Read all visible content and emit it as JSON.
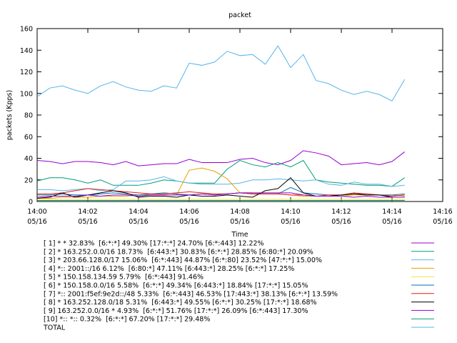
{
  "chart_data": {
    "type": "line",
    "title": "packet",
    "xlabel": "Time",
    "ylabel": "packets (Kpps)",
    "x": [
      0,
      0.5,
      1,
      1.5,
      2,
      2.5,
      3,
      3.5,
      4,
      4.5,
      5,
      5.5,
      6,
      6.5,
      7,
      7.5,
      8,
      8.5,
      9,
      9.5,
      10,
      10.5,
      11,
      11.5,
      12,
      12.5,
      13,
      13.5,
      14,
      14.5
    ],
    "xlim": [
      0,
      16
    ],
    "xticks": [
      {
        "value": 0,
        "label": "14:00\n05/16"
      },
      {
        "value": 2,
        "label": "14:02\n05/16"
      },
      {
        "value": 4,
        "label": "14:04\n05/16"
      },
      {
        "value": 6,
        "label": "14:06\n05/16"
      },
      {
        "value": 8,
        "label": "14:08\n05/16"
      },
      {
        "value": 10,
        "label": "14:10\n05/16"
      },
      {
        "value": 12,
        "label": "14:12\n05/16"
      },
      {
        "value": 14,
        "label": "14:14\n05/16"
      },
      {
        "value": 16,
        "label": "14:16\n05/16"
      }
    ],
    "ylim": [
      0,
      160
    ],
    "yticks": [
      0,
      20,
      40,
      60,
      80,
      100,
      120,
      140,
      160
    ],
    "grid": false,
    "series": [
      {
        "name": "[ 1] * * 32.83%  [6:*:*] 49.30% [17:*:*] 24.70% [6:*:443] 12.22%",
        "color": "#9400d3",
        "values": [
          38,
          37,
          35,
          37,
          37,
          36,
          34,
          37,
          33,
          34,
          35,
          35,
          39,
          36,
          36,
          36,
          39,
          40,
          36,
          34,
          38,
          47,
          45,
          42,
          34,
          35,
          36,
          34,
          37,
          46
        ]
      },
      {
        "name": "[ 2] * 163.252.0.0/16 18.73%  [6:443:*] 30.83% [6:*:*] 28.85% [6:80:*] 20.09%",
        "color": "#009e73",
        "values": [
          19,
          22,
          22,
          20,
          17,
          20,
          15,
          15,
          15,
          17,
          20,
          19,
          17,
          17,
          17,
          30,
          38,
          34,
          32,
          36,
          32,
          38,
          20,
          18,
          17,
          16,
          15,
          15,
          14,
          22
        ]
      },
      {
        "name": "[ 3] * 203.66.128.0/17 15.06%  [6:*:443] 44.87% [6:*:80] 23.52% [47:*:*] 15.00%",
        "color": "#56b4e9",
        "values": [
          11,
          11,
          10,
          11,
          12,
          10,
          11,
          19,
          19,
          20,
          23,
          19,
          17,
          16,
          16,
          16,
          17,
          20,
          20,
          21,
          20,
          19,
          20,
          16,
          15,
          18,
          16,
          16,
          14,
          15
        ]
      },
      {
        "name": "[ 4] *:: 2001::/16 6.12%  [6:80:*] 47.11% [6:443:*] 28.25% [6:*:*] 17.25%",
        "color": "#e69f00",
        "values": [
          3,
          3,
          4,
          4,
          4,
          5,
          5,
          5,
          6,
          6,
          6,
          6,
          29,
          31,
          28,
          21,
          8,
          8,
          7,
          7,
          6,
          5,
          5,
          5,
          5,
          6,
          6,
          6,
          6,
          5
        ]
      },
      {
        "name": "[ 5] * 150.158.134.59 5.79%  [6:*:443] 91.46%",
        "color": "#f0e442",
        "values": [
          2,
          2,
          2,
          2,
          2,
          2,
          2,
          2,
          2,
          2,
          2,
          2,
          2,
          2,
          2,
          2,
          2,
          2,
          2,
          2,
          2,
          2,
          2,
          2,
          2,
          2,
          2,
          2,
          2,
          2
        ]
      },
      {
        "name": "[ 6] * 150.158.0.0/16 5.58%  [6:*:*] 49.34% [6:443:*] 18.84% [17:*:*] 15.05%",
        "color": "#0072b2",
        "values": [
          6,
          6,
          7,
          6,
          6,
          7,
          8,
          7,
          6,
          7,
          8,
          7,
          6,
          7,
          6,
          7,
          8,
          7,
          7,
          7,
          13,
          8,
          7,
          6,
          6,
          7,
          7,
          6,
          6,
          7
        ]
      },
      {
        "name": "[ 7] *:: 2001:f5ef:9e2d::/48 5.33%  [6:*:443] 46.53% [17:443:*] 38.13% [6:*:*] 13.59%",
        "color": "#e51e10",
        "values": [
          7,
          7,
          8,
          10,
          12,
          11,
          10,
          9,
          8,
          7,
          7,
          8,
          9,
          8,
          7,
          7,
          8,
          7,
          7,
          7,
          6,
          6,
          5,
          6,
          6,
          8,
          7,
          6,
          5,
          6
        ]
      },
      {
        "name": "[ 8] * 163.252.128.0/18 5.31%  [6:443:*] 49.55% [6:*:*] 30.25% [17:*:*] 18.68%",
        "color": "#000000",
        "values": [
          3,
          4,
          8,
          4,
          6,
          8,
          10,
          8,
          4,
          5,
          5,
          4,
          6,
          5,
          5,
          6,
          5,
          4,
          10,
          12,
          22,
          8,
          5,
          5,
          6,
          7,
          6,
          6,
          4,
          4
        ]
      },
      {
        "name": "[ 9] 163.252.0.0/16 * 4.93%  [6:*:*] 51.76% [17:*:*] 26.09% [6:*:443] 17.30%",
        "color": "#9400d3",
        "values": [
          4,
          5,
          5,
          5,
          6,
          5,
          6,
          6,
          5,
          6,
          6,
          6,
          6,
          7,
          6,
          7,
          8,
          8,
          8,
          8,
          8,
          6,
          5,
          5,
          5,
          4,
          5,
          4,
          4,
          4
        ]
      },
      {
        "name": "[10] *:: *:: 0.32%  [6:*:*] 67.20% [17:*:*] 29.48%",
        "color": "#009e73",
        "values": [
          1,
          1,
          1,
          1,
          1,
          1,
          1,
          1,
          1,
          1,
          1,
          1,
          1,
          1,
          1,
          1,
          1,
          1,
          1,
          1,
          1,
          1,
          1,
          1,
          1,
          1,
          1,
          1,
          1,
          1
        ]
      },
      {
        "name": "TOTAL",
        "color": "#56b4e9",
        "values": [
          97,
          105,
          107,
          103,
          100,
          107,
          111,
          106,
          103,
          102,
          107,
          105,
          128,
          126,
          129,
          139,
          135,
          136,
          127,
          144,
          124,
          136,
          112,
          109,
          103,
          99,
          102,
          99,
          93,
          113
        ]
      }
    ]
  }
}
